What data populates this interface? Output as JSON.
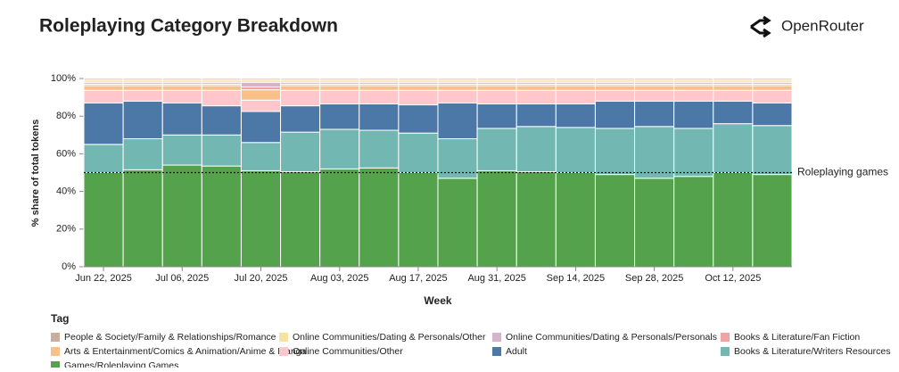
{
  "chart_data": {
    "type": "stacked_bar",
    "title": "Roleplaying Category Breakdown",
    "brand": "OpenRouter",
    "xlabel": "Week",
    "ylabel": "% share of total tokens",
    "legend_title": "Tag",
    "categories": [
      "Jun 22, 2025",
      null,
      "Jul 06, 2025",
      null,
      "Jul 20, 2025",
      null,
      "Aug 03, 2025",
      null,
      "Aug 17, 2025",
      null,
      "Aug 31, 2025",
      null,
      "Sep 14, 2025",
      null,
      "Sep 28, 2025",
      null,
      "Oct 12, 2025",
      null
    ],
    "ylim": [
      0,
      100
    ],
    "yticks": [
      {
        "value": 0,
        "label": "0%"
      },
      {
        "value": 20,
        "label": "20%"
      },
      {
        "value": 40,
        "label": "40%"
      },
      {
        "value": 60,
        "label": "60%"
      },
      {
        "value": 80,
        "label": "80%"
      },
      {
        "value": 100,
        "label": "100%"
      }
    ],
    "reference_line": {
      "value": 50,
      "label": "Roleplaying games"
    },
    "series": [
      {
        "name": "Games/Roleplaying Games",
        "color": "#54a24b",
        "values": [
          50,
          51.5,
          54,
          53.5,
          51,
          50.5,
          52,
          52.5,
          50,
          47,
          51,
          50.5,
          50,
          49,
          47,
          48,
          50,
          49
        ]
      },
      {
        "name": "Books & Literature/Writers Resources",
        "color": "#72b7b2",
        "values": [
          15,
          16.5,
          16,
          16.5,
          15,
          21,
          21,
          20,
          21,
          21,
          22.5,
          24,
          24,
          24.5,
          27.5,
          25.5,
          26,
          26
        ]
      },
      {
        "name": "Adult",
        "color": "#4c78a8",
        "values": [
          22,
          20,
          17,
          15.5,
          16.5,
          14,
          13.5,
          14,
          15,
          19,
          13,
          12,
          12.5,
          14.5,
          13.5,
          14.5,
          12,
          12
        ]
      },
      {
        "name": "Online Communities/Other",
        "color": "#ffc6cb",
        "values": [
          6.7,
          5.7,
          6.7,
          8.2,
          6,
          8.2,
          7.2,
          7.2,
          7.7,
          6.7,
          7.2,
          7.2,
          7.2,
          5.7,
          5.7,
          5.7,
          5.7,
          6.7
        ]
      },
      {
        "name": "Arts & Entertainment/Comics & Animation/Anime & Manga",
        "color": "#f9c08a",
        "values": [
          2.5,
          2.5,
          2.5,
          2.5,
          5.5,
          2.5,
          2.5,
          2.5,
          2.5,
          2.5,
          2.5,
          2.5,
          2.5,
          2.5,
          2.5,
          2.5,
          2.5,
          2.5
        ]
      },
      {
        "name": "Books & Literature/Fan Fiction",
        "color": "#f0a3a2",
        "values": [
          0.8,
          0.8,
          0.8,
          0.8,
          1.5,
          0.8,
          0.8,
          0.8,
          0.8,
          0.8,
          0.8,
          0.8,
          0.8,
          0.8,
          0.8,
          0.8,
          0.8,
          0.8
        ]
      },
      {
        "name": "Online Communities/Dating & Personals/Personals",
        "color": "#d4b3cb",
        "values": [
          1,
          1,
          1,
          1,
          2.5,
          1,
          1,
          1,
          1,
          1,
          1,
          1,
          1,
          1,
          1,
          1,
          1,
          1
        ]
      },
      {
        "name": "Online Communities/Dating & Personals/Other",
        "color": "#f5e3a0",
        "values": [
          1.2,
          1.2,
          1.2,
          1.2,
          1.2,
          1.2,
          1.2,
          1.2,
          1.2,
          1.2,
          1.2,
          1.2,
          1.2,
          1.2,
          1.2,
          1.2,
          1.2,
          1.2
        ]
      },
      {
        "name": "People & Society/Family & Relationships/Romance",
        "color": "#c8ae9e",
        "values": [
          0.8,
          0.8,
          0.8,
          0.8,
          0.8,
          0.8,
          0.8,
          0.8,
          0.8,
          0.8,
          0.8,
          0.8,
          0.8,
          0.8,
          0.8,
          0.8,
          0.8,
          0.8
        ]
      }
    ]
  }
}
